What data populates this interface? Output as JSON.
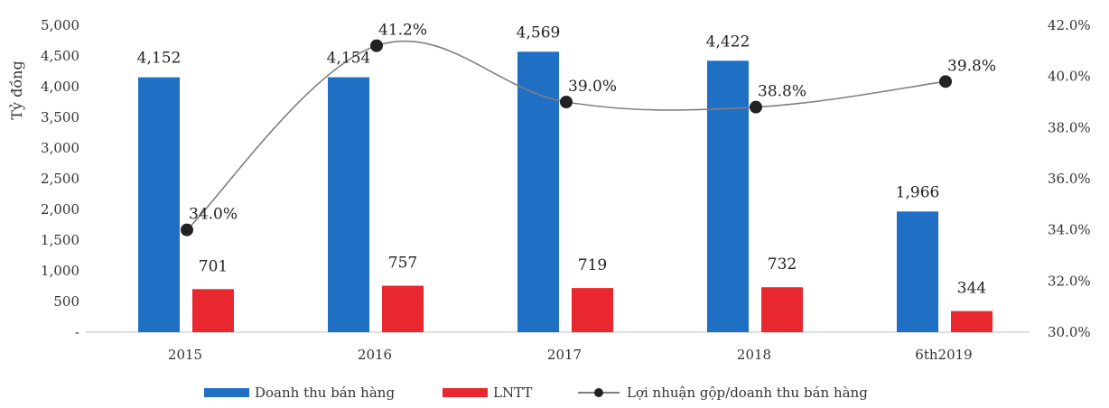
{
  "chart_data": {
    "type": "bar",
    "categories": [
      "2015",
      "2016",
      "2017",
      "2018",
      "6th2019"
    ],
    "ylabel": "Tỷ đồng",
    "ylim": [
      0,
      5000
    ],
    "y_ticks": [
      "-",
      "500",
      "1,000",
      "1,500",
      "2,000",
      "2,500",
      "3,000",
      "3,500",
      "4,000",
      "4,500",
      "5,000"
    ],
    "y2lim": [
      30.0,
      42.0
    ],
    "y2_ticks": [
      "30.0%",
      "32.0%",
      "34.0%",
      "36.0%",
      "38.0%",
      "40.0%",
      "42.0%"
    ],
    "grid": false,
    "legend_position": "bottom",
    "series": [
      {
        "name": "Doanh thu bán hàng",
        "kind": "bar",
        "axis": "left",
        "color": "#1f6fc5",
        "values": [
          4152,
          4154,
          4569,
          4422,
          1966
        ],
        "labels": [
          "4,152",
          "4,154",
          "4,569",
          "4,422",
          "1,966"
        ]
      },
      {
        "name": "LNTT",
        "kind": "bar",
        "axis": "left",
        "color": "#e8272f",
        "values": [
          701,
          757,
          719,
          732,
          344
        ],
        "labels": [
          "701",
          "757",
          "719",
          "732",
          "344"
        ]
      },
      {
        "name": "Lợi nhuận gộp/doanh thu bán hàng",
        "kind": "line",
        "axis": "right",
        "color": "#7f7f7f",
        "marker_color": "#222222",
        "values": [
          34.0,
          41.2,
          39.0,
          38.8,
          39.8
        ],
        "labels": [
          "34.0%",
          "41.2%",
          "39.0%",
          "38.8%",
          "39.8%"
        ]
      }
    ]
  }
}
